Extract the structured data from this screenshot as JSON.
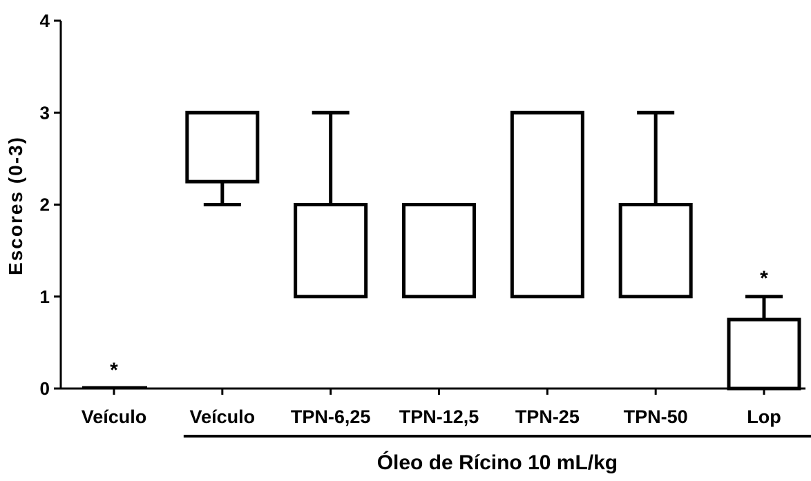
{
  "chart_data": {
    "type": "box",
    "title": "",
    "ylabel": "Escores (0-3)",
    "xlabel": "",
    "ylim": [
      0,
      4
    ],
    "yticks": [
      "0",
      "1",
      "2",
      "3",
      "4"
    ],
    "categories": [
      "Veículo",
      "Veículo",
      "TPN-6,25",
      "TPN-12,5",
      "TPN-25",
      "TPN-50",
      "Lop"
    ],
    "boxes": [
      {
        "q1": 0,
        "q3": 0,
        "min": 0,
        "max": 0,
        "significance": "*"
      },
      {
        "q1": 2.25,
        "q3": 3,
        "min": 2,
        "max": 3,
        "significance": ""
      },
      {
        "q1": 1,
        "q3": 2,
        "min": 1,
        "max": 3,
        "significance": ""
      },
      {
        "q1": 1,
        "q3": 2,
        "min": 1,
        "max": 2,
        "significance": ""
      },
      {
        "q1": 1,
        "q3": 3,
        "min": 1,
        "max": 3,
        "significance": ""
      },
      {
        "q1": 1,
        "q3": 2,
        "min": 1,
        "max": 3,
        "significance": ""
      },
      {
        "q1": 0,
        "q3": 0.75,
        "min": 0,
        "max": 1,
        "significance": "*"
      }
    ],
    "group_label": "Óleo de Rícino 10 mL/kg",
    "group_from_index": 1,
    "group_to_index": 6,
    "grid": false,
    "legend": "none"
  }
}
